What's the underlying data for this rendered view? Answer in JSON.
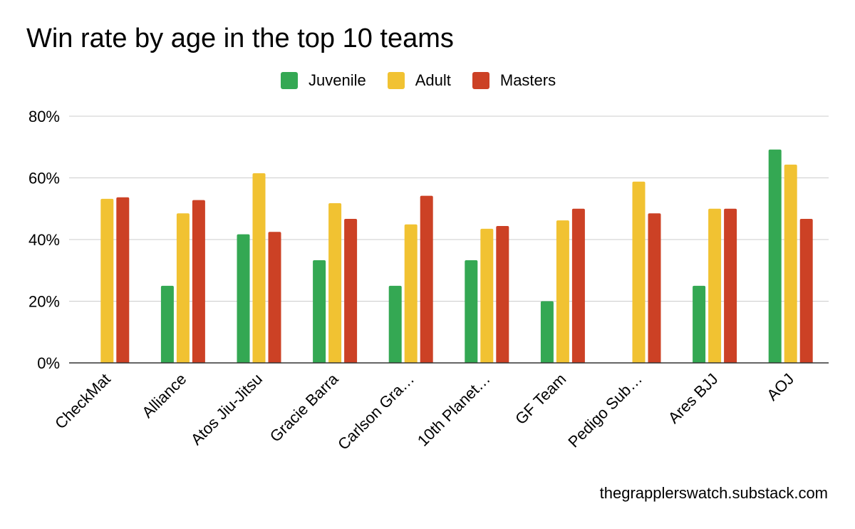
{
  "chart_data": {
    "type": "bar",
    "title": "Win rate by age in the top 10 teams",
    "xlabel": "",
    "ylabel": "",
    "ylim": [
      0,
      80
    ],
    "yticks": [
      0,
      20,
      40,
      60,
      80
    ],
    "ytick_labels": [
      "0%",
      "20%",
      "40%",
      "60%",
      "80%"
    ],
    "grid": true,
    "legend_position": "top-center",
    "categories": [
      "CheckMat",
      "Alliance",
      "Atos Jiu-Jitsu",
      "Gracie Barra",
      "Carlson Gra…",
      "10th Planet…",
      "GF Team",
      "Pedigo Sub…",
      "Ares BJJ",
      "AOJ"
    ],
    "series": [
      {
        "name": "Juvenile",
        "color": "#34a853",
        "values": [
          null,
          25.0,
          41.7,
          33.3,
          25.0,
          33.3,
          20.0,
          null,
          25.0,
          69.2
        ]
      },
      {
        "name": "Adult",
        "color": "#f1c232",
        "values": [
          53.2,
          48.5,
          61.5,
          51.8,
          44.9,
          43.5,
          46.2,
          58.8,
          50.0,
          64.3
        ]
      },
      {
        "name": "Masters",
        "color": "#cc4125",
        "values": [
          53.7,
          52.8,
          42.5,
          46.7,
          54.2,
          44.4,
          50.0,
          48.5,
          50.0,
          46.7
        ]
      }
    ]
  },
  "footer": {
    "source": "thegrapplerswatch.substack.com"
  }
}
